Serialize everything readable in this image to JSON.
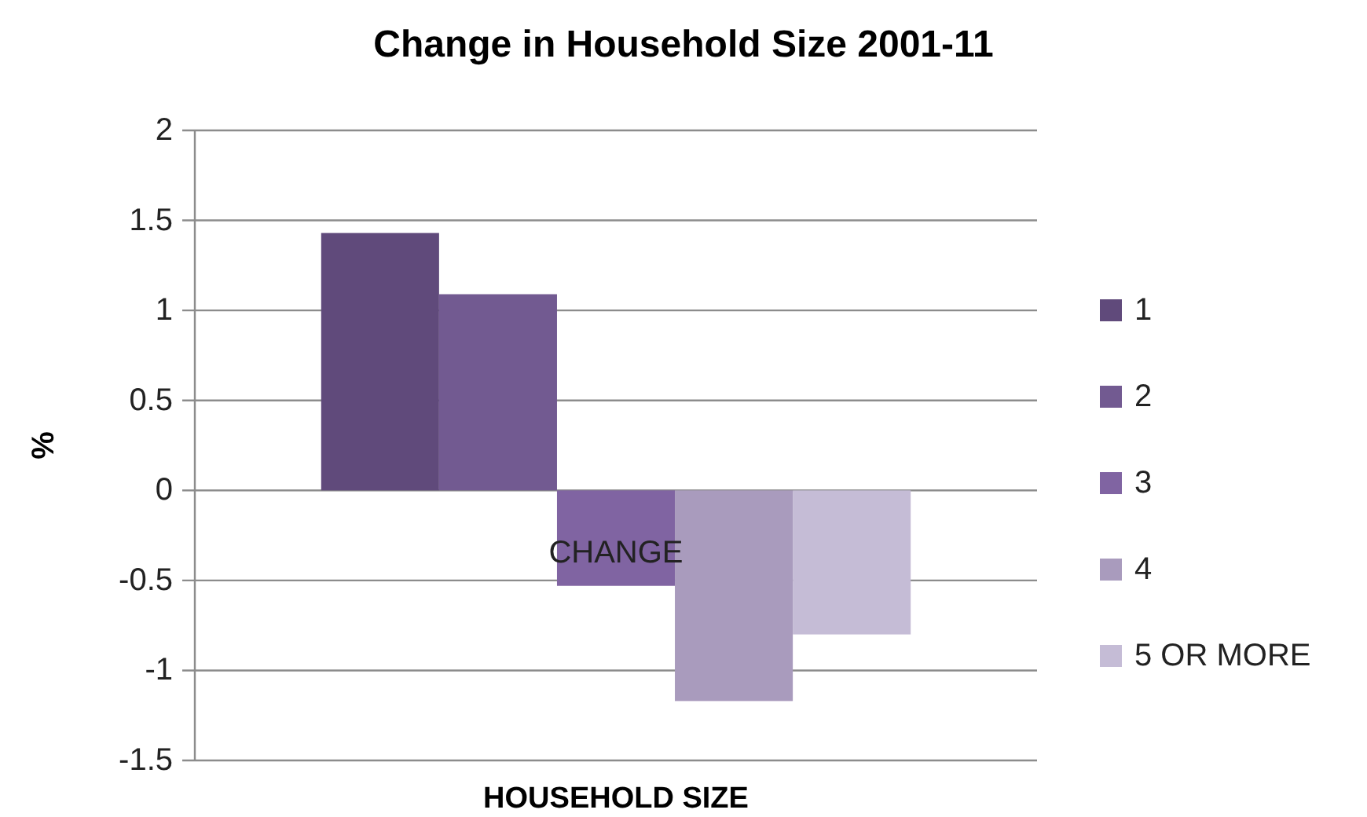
{
  "chart_data": {
    "type": "bar",
    "title": "Change in Household Size 2001-11",
    "xlabel": "HOUSEHOLD SIZE",
    "ylabel": "%",
    "categories": [
      "CHANGE"
    ],
    "series": [
      {
        "name": "1",
        "color": "#604a7b",
        "values": [
          1.43
        ]
      },
      {
        "name": "2",
        "color": "#725a91",
        "values": [
          1.09
        ]
      },
      {
        "name": "3",
        "color": "#8064a2",
        "values": [
          -0.53
        ]
      },
      {
        "name": "4",
        "color": "#a99bbd",
        "values": [
          -1.17
        ]
      },
      {
        "name": "5 OR MORE",
        "color": "#c5bcd6",
        "values": [
          -0.8
        ]
      }
    ],
    "ylim": [
      -1.5,
      2
    ],
    "yticks": [
      -1.5,
      -1,
      -0.5,
      0,
      0.5,
      1,
      1.5,
      2
    ],
    "grid": "y",
    "legend": "right"
  }
}
